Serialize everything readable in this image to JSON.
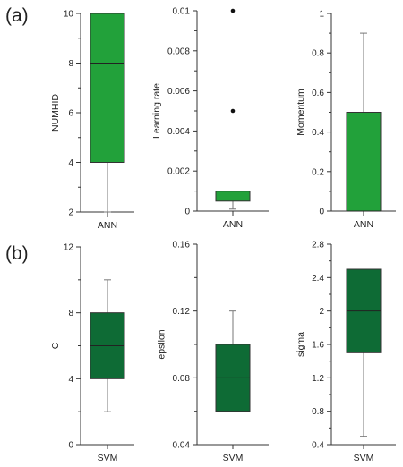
{
  "panel_labels": [
    "(a)",
    "(b)"
  ],
  "colors": {
    "ann_box": "#22a13a",
    "svm_box": "#0e6b35",
    "axis": "#333333",
    "whisker": "#777777",
    "outlier": "#111111"
  },
  "chart_data": [
    {
      "type": "box",
      "panel": "(a)",
      "category": "ANN",
      "ylabel": "NUMHID",
      "ylim": [
        2,
        10
      ],
      "ticks": [
        "2",
        "4",
        "6",
        "8",
        "10"
      ],
      "min": 2,
      "q1": 4,
      "median": 8,
      "q3": 10,
      "max": 10,
      "outliers": [],
      "color": "#22a13a"
    },
    {
      "type": "box",
      "panel": "(a)",
      "category": "ANN",
      "ylabel": "Learning rate",
      "ylim": [
        0,
        0.01
      ],
      "ticks": [
        "0",
        "0.002",
        "0.004",
        "0.006",
        "0.008",
        "0.01"
      ],
      "min": 0.0001,
      "q1": 0.0005,
      "median": 0.001,
      "q3": 0.001,
      "max": 0.001,
      "outliers": [
        0.005,
        0.01
      ],
      "color": "#22a13a"
    },
    {
      "type": "box",
      "panel": "(a)",
      "category": "ANN",
      "ylabel": "Momentum",
      "ylim": [
        0,
        1
      ],
      "ticks": [
        "0",
        "0.2",
        "0.4",
        "0.6",
        "0.8",
        "1"
      ],
      "min": 0,
      "q1": 0,
      "median": 0,
      "q3": 0.5,
      "max": 0.9,
      "outliers": [],
      "color": "#22a13a"
    },
    {
      "type": "box",
      "panel": "(b)",
      "category": "SVM",
      "ylabel": "C",
      "ylim": [
        0,
        12
      ],
      "ticks": [
        "0",
        "4",
        "8",
        "12"
      ],
      "min": 2,
      "q1": 4,
      "median": 6,
      "q3": 8,
      "max": 10,
      "outliers": [],
      "color": "#0e6b35"
    },
    {
      "type": "box",
      "panel": "(b)",
      "category": "SVM",
      "ylabel": "epsilon",
      "ylim": [
        0.04,
        0.16
      ],
      "ticks": [
        "0.04",
        "0.08",
        "0.12",
        "0.16"
      ],
      "min": 0.06,
      "q1": 0.06,
      "median": 0.08,
      "q3": 0.1,
      "max": 0.12,
      "outliers": [],
      "color": "#0e6b35"
    },
    {
      "type": "box",
      "panel": "(b)",
      "category": "SVM",
      "ylabel": "sigma",
      "ylim": [
        0.4,
        2.8
      ],
      "ticks": [
        "0.4",
        "0.8",
        "1.2",
        "1.6",
        "2",
        "2.4",
        "2.8"
      ],
      "min": 0.5,
      "q1": 1.5,
      "median": 2,
      "q3": 2.5,
      "max": 2.5,
      "outliers": [],
      "color": "#0e6b35"
    }
  ]
}
